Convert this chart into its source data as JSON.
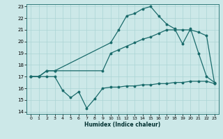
{
  "xlabel": "Humidex (Indice chaleur)",
  "xlim": [
    -0.5,
    23.5
  ],
  "ylim": [
    13.8,
    23.2
  ],
  "yticks": [
    14,
    15,
    16,
    17,
    18,
    19,
    20,
    21,
    22,
    23
  ],
  "xticks": [
    0,
    1,
    2,
    3,
    4,
    5,
    6,
    7,
    8,
    9,
    10,
    11,
    12,
    13,
    14,
    15,
    16,
    17,
    18,
    19,
    20,
    21,
    22,
    23
  ],
  "bg_color": "#cce8e8",
  "grid_color": "#aad4d4",
  "line_color": "#1a6b6b",
  "line1_x": [
    0,
    1,
    2,
    3,
    10,
    11,
    12,
    13,
    14,
    15,
    16,
    17,
    18,
    19,
    20,
    21,
    22,
    23
  ],
  "line1_y": [
    17,
    17,
    17.5,
    17.5,
    19.9,
    21.0,
    22.2,
    22.4,
    22.8,
    23.0,
    22.2,
    21.5,
    21.1,
    19.8,
    21.1,
    19.0,
    17.0,
    16.5
  ],
  "line2_x": [
    0,
    1,
    2,
    3,
    9,
    10,
    11,
    12,
    13,
    14,
    15,
    16,
    17,
    18,
    19,
    20,
    21,
    22,
    23
  ],
  "line2_y": [
    17,
    17,
    17.5,
    17.5,
    17.5,
    19.0,
    19.3,
    19.6,
    19.9,
    20.2,
    20.4,
    20.7,
    21.0,
    21.0,
    21.0,
    21.0,
    20.8,
    20.5,
    16.4
  ],
  "line3_x": [
    0,
    1,
    2,
    3,
    4,
    5,
    6,
    7,
    8,
    9,
    10,
    11,
    12,
    13,
    14,
    15,
    16,
    17,
    18,
    19,
    20,
    21,
    22,
    23
  ],
  "line3_y": [
    17,
    17,
    17,
    17,
    15.8,
    15.2,
    15.7,
    14.3,
    15.1,
    16.0,
    16.1,
    16.1,
    16.2,
    16.2,
    16.3,
    16.3,
    16.4,
    16.4,
    16.5,
    16.5,
    16.6,
    16.6,
    16.6,
    16.4
  ]
}
